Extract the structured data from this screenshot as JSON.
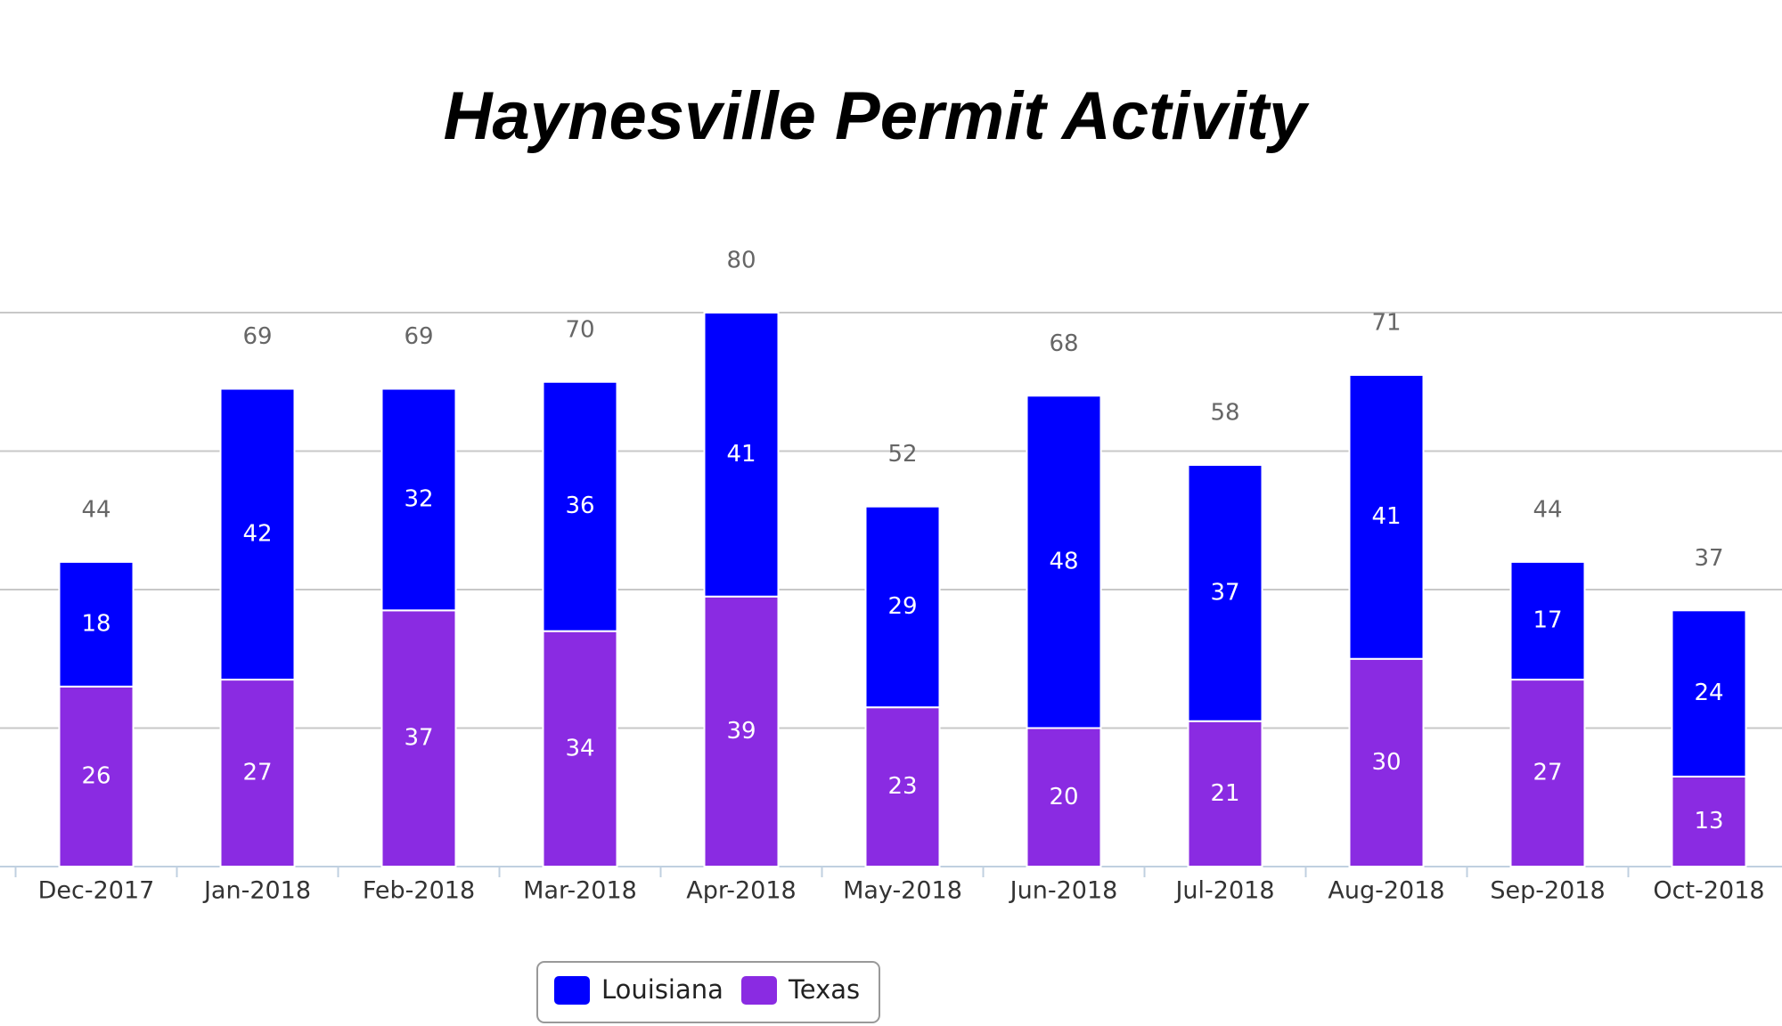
{
  "chart_data": {
    "type": "stacked_bar",
    "title": "Haynesville Permit Activity",
    "categories": [
      "Dec-2017",
      "Jan-2018",
      "Feb-2018",
      "Mar-2018",
      "Apr-2018",
      "May-2018",
      "Jun-2018",
      "Jul-2018",
      "Aug-2018",
      "Sep-2018",
      "Oct-2018"
    ],
    "series": [
      {
        "name": "Texas",
        "color": "#8a2be2",
        "values": [
          26,
          27,
          37,
          34,
          39,
          23,
          20,
          21,
          30,
          27,
          13
        ]
      },
      {
        "name": "Louisiana",
        "color": "#0000ff",
        "values": [
          18,
          42,
          32,
          36,
          41,
          29,
          48,
          37,
          41,
          17,
          24
        ]
      }
    ],
    "totals": [
      44,
      69,
      69,
      70,
      80,
      52,
      68,
      58,
      71,
      44,
      37
    ],
    "ylim": [
      0,
      80
    ],
    "yticks": [
      0,
      20,
      40,
      60,
      80
    ],
    "grid": true
  }
}
